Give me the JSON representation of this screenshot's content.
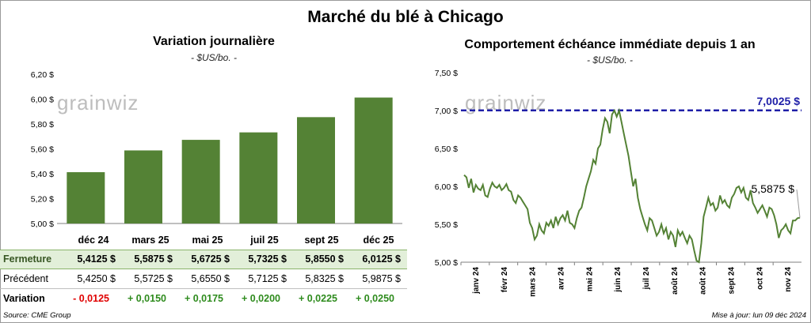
{
  "title": "Marché du blé à Chicago",
  "left_panel": {
    "title": "Variation journalière",
    "unit": "- $US/bo. -",
    "watermark": "grainwiz"
  },
  "right_panel": {
    "title": "Comportement échéance immédiate depuis 1 an",
    "unit": "- $US/bo. -",
    "watermark": "grainwiz",
    "max_label": "7,0025 $",
    "last_label": "5,5875 $"
  },
  "table": {
    "row_labels": {
      "close": "Fermeture",
      "prev": "Précédent",
      "var": "Variation"
    },
    "contracts": [
      "déc 24",
      "mars 25",
      "mai 25",
      "juil 25",
      "sept 25",
      "déc 25"
    ],
    "close": [
      "5,4125  $",
      "5,5875  $",
      "5,6725  $",
      "5,7325  $",
      "5,8550  $",
      "6,0125  $"
    ],
    "prev": [
      "5,4250  $",
      "5,5725  $",
      "5,6550  $",
      "5,7125  $",
      "5,8325  $",
      "5,9875  $"
    ],
    "var": [
      "- 0,0125",
      "+ 0,0150",
      "+ 0,0175",
      "+ 0,0200",
      "+ 0,0225",
      "+ 0,0250"
    ]
  },
  "footer": {
    "source": "Source: CME Group",
    "update": "Mise à jour: lun 09 déc 2024"
  },
  "colors": {
    "bar": "#548235",
    "line": "#548235",
    "max_line": "#1f1fa8",
    "negative": "#e00000",
    "positive": "#2e8b1d"
  },
  "chart_data": [
    {
      "type": "bar",
      "categories": [
        "déc 24",
        "mars 25",
        "mai 25",
        "juil 25",
        "sept 25",
        "déc 25"
      ],
      "values": [
        5.4125,
        5.5875,
        5.6725,
        5.7325,
        5.855,
        6.0125
      ],
      "ylim": [
        5.0,
        6.2
      ],
      "yticks": [
        5.0,
        5.2,
        5.4,
        5.6,
        5.8,
        6.0,
        6.2
      ],
      "ytick_labels": [
        "5,00 $",
        "5,20 $",
        "5,40 $",
        "5,60 $",
        "5,80 $",
        "6,00 $",
        "6,20 $"
      ],
      "grid": false
    },
    {
      "type": "line",
      "ylim": [
        5.0,
        7.5
      ],
      "yticks": [
        5.0,
        5.5,
        6.0,
        6.5,
        7.0,
        7.5
      ],
      "ytick_labels": [
        "5,00 $",
        "5,50 $",
        "6,00 $",
        "6,50 $",
        "7,00 $",
        "7,50 $"
      ],
      "xtick_labels": [
        "janv 24",
        "févr 24",
        "mars 24",
        "avr 24",
        "mai 24",
        "juin 24",
        "juil 24",
        "août 24",
        "août 24",
        "sept 24",
        "oct 24",
        "nov 24"
      ],
      "reference_line": 7.0025,
      "last_value": 5.5875,
      "series": [
        {
          "values": [
            6.15,
            6.12,
            5.98,
            6.1,
            5.92,
            6.02,
            5.97,
            5.95,
            6.02,
            5.88,
            5.86,
            5.97,
            6.05,
            6.0,
            5.98,
            6.02,
            5.95,
            5.98,
            6.03,
            5.95,
            5.93,
            5.82,
            5.78,
            5.88,
            5.85,
            5.8,
            5.75,
            5.7,
            5.52,
            5.45,
            5.3,
            5.35,
            5.5,
            5.42,
            5.38,
            5.52,
            5.48,
            5.55,
            5.45,
            5.6,
            5.5,
            5.58,
            5.62,
            5.55,
            5.68,
            5.52,
            5.5,
            5.45,
            5.58,
            5.68,
            5.72,
            5.85,
            6.0,
            6.1,
            6.2,
            6.35,
            6.3,
            6.5,
            6.55,
            6.75,
            6.9,
            6.85,
            6.7,
            6.95,
            7.0,
            6.92,
            7.0,
            6.85,
            6.7,
            6.55,
            6.4,
            6.2,
            6.0,
            6.1,
            5.85,
            5.7,
            5.6,
            5.5,
            5.42,
            5.58,
            5.55,
            5.45,
            5.35,
            5.4,
            5.5,
            5.38,
            5.45,
            5.3,
            5.4,
            5.35,
            5.2,
            5.42,
            5.35,
            5.4,
            5.32,
            5.25,
            5.35,
            5.3,
            5.15,
            5.02,
            5.0,
            5.25,
            5.6,
            5.72,
            5.85,
            5.75,
            5.78,
            5.68,
            5.72,
            5.88,
            5.78,
            5.82,
            5.75,
            5.72,
            5.85,
            5.9,
            5.98,
            6.0,
            5.92,
            5.98,
            5.85,
            5.82,
            5.95,
            5.78,
            5.72,
            5.65,
            5.7,
            5.75,
            5.68,
            5.6,
            5.72,
            5.7,
            5.62,
            5.5,
            5.32,
            5.42,
            5.45,
            5.5,
            5.42,
            5.38,
            5.55,
            5.55,
            5.58,
            5.5875
          ]
        }
      ]
    }
  ]
}
